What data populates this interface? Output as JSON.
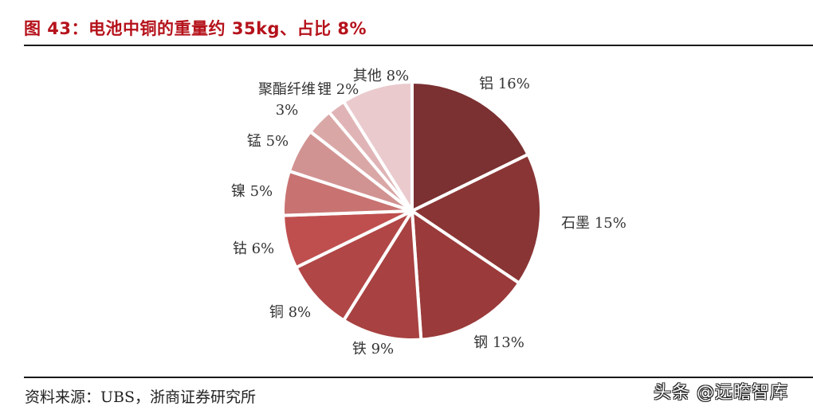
{
  "title": "图 43：电池中铜的重量约 35kg、占比 8%",
  "source": "资料来源：UBS，浙商证券研究所",
  "watermark": "头条 @远瞻智库",
  "chart_data": {
    "type": "pie",
    "title": "图 43：电池中铜的重量约 35kg、占比 8%",
    "start_angle": "12 o'clock, clockwise",
    "categories": [
      "铝",
      "石墨",
      "钢",
      "铁",
      "铜",
      "钴",
      "镍",
      "锰",
      "聚酯纤维",
      "锂",
      "其他"
    ],
    "values": [
      16,
      15,
      13,
      9,
      8,
      6,
      5,
      5,
      3,
      2,
      8
    ],
    "unit": "%",
    "labels": [
      "铝 16%",
      "石墨 15%",
      "钢 13%",
      "铁 9%",
      "铜 8%",
      "钴 6%",
      "镍 5%",
      "锰 5%",
      "聚酯纤维 3%",
      "锂 2%",
      "其他 8%"
    ],
    "colors": [
      "#7b3031",
      "#8a3535",
      "#9a3a3a",
      "#a84141",
      "#b14646",
      "#bf4f4f",
      "#c87371",
      "#d19392",
      "#daa7a7",
      "#e0b4b6",
      "#eacacd"
    ],
    "legend": "none (data labels outside slices)"
  }
}
